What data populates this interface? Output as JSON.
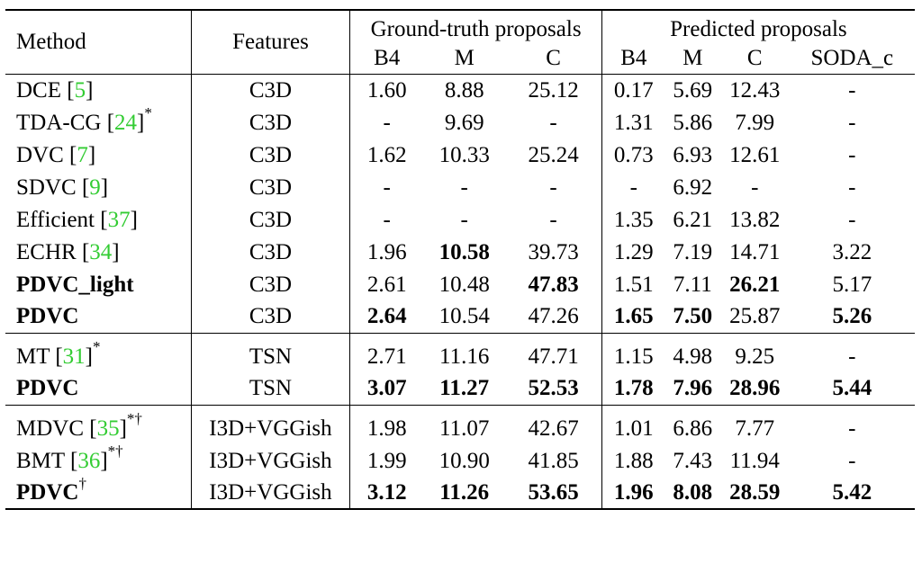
{
  "chart_data": {
    "type": "table",
    "header": {
      "method": "Method",
      "features": "Features",
      "group_gt": "Ground-truth proposals",
      "group_pred": "Predicted proposals",
      "gt_cols": [
        "B4",
        "M",
        "C"
      ],
      "pred_cols": [
        "B4",
        "M",
        "C",
        "SODA_c"
      ]
    },
    "groups": [
      {
        "rows": [
          {
            "name": "DCE ",
            "ref": "5",
            "close": "]",
            "sup": "",
            "bold": false,
            "features": "C3D",
            "gt": [
              "1.60",
              "8.88",
              "25.12"
            ],
            "pred": [
              "0.17",
              "5.69",
              "12.43",
              "-"
            ]
          },
          {
            "name": "TDA-CG ",
            "ref": "24",
            "close": "]",
            "sup": "*",
            "bold": false,
            "features": "C3D",
            "gt": [
              "-",
              "9.69",
              "-"
            ],
            "pred": [
              "1.31",
              "5.86",
              "7.99",
              "-"
            ]
          },
          {
            "name": "DVC ",
            "ref": "7",
            "close": "]",
            "sup": "",
            "bold": false,
            "features": "C3D",
            "gt": [
              "1.62",
              "10.33",
              "25.24"
            ],
            "pred": [
              "0.73",
              "6.93",
              "12.61",
              "-"
            ]
          },
          {
            "name": "SDVC ",
            "ref": "9",
            "close": "]",
            "sup": "",
            "bold": false,
            "features": "C3D",
            "gt": [
              "-",
              "-",
              "-"
            ],
            "pred": [
              "-",
              "6.92",
              "-",
              "-"
            ]
          },
          {
            "name": "Efficient ",
            "ref": "37",
            "close": "]",
            "sup": "",
            "bold": false,
            "features": "C3D",
            "gt": [
              "-",
              "-",
              "-"
            ],
            "pred": [
              "1.35",
              "6.21",
              "13.82",
              "-"
            ]
          },
          {
            "name": "ECHR ",
            "ref": "34",
            "close": "]",
            "sup": "",
            "bold": false,
            "features": "C3D",
            "gt": [
              "1.96",
              "10.58",
              "39.73"
            ],
            "pred": [
              "1.29",
              "7.19",
              "14.71",
              "3.22"
            ]
          },
          {
            "name": "PDVC_light",
            "ref": "",
            "close": "",
            "sup": "",
            "bold": true,
            "features": "C3D",
            "gt": [
              "2.61",
              "10.48",
              "47.83"
            ],
            "pred": [
              "1.51",
              "7.11",
              "26.21",
              "5.17"
            ]
          },
          {
            "name": "PDVC",
            "ref": "",
            "close": "",
            "sup": "",
            "bold": true,
            "features": "C3D",
            "gt": [
              "2.64",
              "10.54",
              "47.26"
            ],
            "pred": [
              "1.65",
              "7.50",
              "25.87",
              "5.26"
            ]
          }
        ]
      },
      {
        "rows": [
          {
            "name": "MT ",
            "ref": "31",
            "close": "]",
            "sup": "*",
            "bold": false,
            "features": "TSN",
            "gt": [
              "2.71",
              "11.16",
              "47.71"
            ],
            "pred": [
              "1.15",
              "4.98",
              "9.25",
              "-"
            ]
          },
          {
            "name": "PDVC",
            "ref": "",
            "close": "",
            "sup": "",
            "bold": true,
            "features": "TSN",
            "gt": [
              "3.07",
              "11.27",
              "52.53"
            ],
            "pred": [
              "1.78",
              "7.96",
              "28.96",
              "5.44"
            ]
          }
        ]
      },
      {
        "rows": [
          {
            "name": "MDVC ",
            "ref": "35",
            "close": "]",
            "sup": "*†",
            "bold": false,
            "features": "I3D+VGGish",
            "gt": [
              "1.98",
              "11.07",
              "42.67"
            ],
            "pred": [
              "1.01",
              "6.86",
              "7.77",
              "-"
            ]
          },
          {
            "name": "BMT ",
            "ref": "36",
            "close": "]",
            "sup": "*†",
            "bold": false,
            "features": "I3D+VGGish",
            "gt": [
              "1.99",
              "10.90",
              "41.85"
            ],
            "pred": [
              "1.88",
              "7.43",
              "11.94",
              "-"
            ]
          },
          {
            "name": "PDVC",
            "ref": "",
            "close": "",
            "sup": "†",
            "bold": true,
            "features": "I3D+VGGish",
            "gt": [
              "3.12",
              "11.26",
              "53.65"
            ],
            "pred": [
              "1.96",
              "8.08",
              "28.59",
              "5.42"
            ]
          }
        ]
      }
    ],
    "bold_cells": [
      {
        "g": 0,
        "r": 5,
        "col": "gt",
        "i": 1
      },
      {
        "g": 0,
        "r": 6,
        "col": "gt",
        "i": 2
      },
      {
        "g": 0,
        "r": 6,
        "col": "pred",
        "i": 2
      },
      {
        "g": 0,
        "r": 7,
        "col": "gt",
        "i": 0
      },
      {
        "g": 0,
        "r": 7,
        "col": "pred",
        "i": 0
      },
      {
        "g": 0,
        "r": 7,
        "col": "pred",
        "i": 1
      },
      {
        "g": 0,
        "r": 7,
        "col": "pred",
        "i": 3
      },
      {
        "g": 1,
        "r": 1,
        "col": "gt",
        "i": 0
      },
      {
        "g": 1,
        "r": 1,
        "col": "gt",
        "i": 1
      },
      {
        "g": 1,
        "r": 1,
        "col": "gt",
        "i": 2
      },
      {
        "g": 1,
        "r": 1,
        "col": "pred",
        "i": 0
      },
      {
        "g": 1,
        "r": 1,
        "col": "pred",
        "i": 1
      },
      {
        "g": 1,
        "r": 1,
        "col": "pred",
        "i": 2
      },
      {
        "g": 1,
        "r": 1,
        "col": "pred",
        "i": 3
      },
      {
        "g": 2,
        "r": 2,
        "col": "gt",
        "i": 0
      },
      {
        "g": 2,
        "r": 2,
        "col": "gt",
        "i": 1
      },
      {
        "g": 2,
        "r": 2,
        "col": "gt",
        "i": 2
      },
      {
        "g": 2,
        "r": 2,
        "col": "pred",
        "i": 0
      },
      {
        "g": 2,
        "r": 2,
        "col": "pred",
        "i": 1
      },
      {
        "g": 2,
        "r": 2,
        "col": "pred",
        "i": 2
      },
      {
        "g": 2,
        "r": 2,
        "col": "pred",
        "i": 3
      }
    ],
    "colors": {
      "reference": "#33cc33",
      "text": "#000000"
    }
  }
}
